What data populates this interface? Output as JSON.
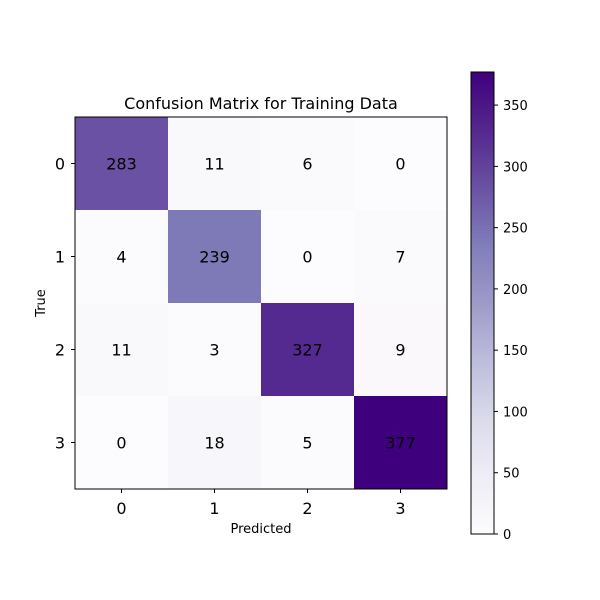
{
  "chart_data": {
    "type": "heatmap",
    "title": "Confusion Matrix for Training Data",
    "xlabel": "Predicted",
    "ylabel": "True",
    "x_categories": [
      "0",
      "1",
      "2",
      "3"
    ],
    "y_categories": [
      "0",
      "1",
      "2",
      "3"
    ],
    "values": [
      [
        283,
        11,
        6,
        0
      ],
      [
        4,
        239,
        0,
        7
      ],
      [
        11,
        3,
        327,
        9
      ],
      [
        0,
        18,
        5,
        377
      ]
    ],
    "colormap": "Purples",
    "color_range": [
      0,
      377
    ],
    "colorbar_ticks": [
      0,
      50,
      100,
      150,
      200,
      250,
      300,
      350
    ],
    "grid": false,
    "colors": {
      "low": "#fcfbfd",
      "high": "#3f007d"
    }
  }
}
